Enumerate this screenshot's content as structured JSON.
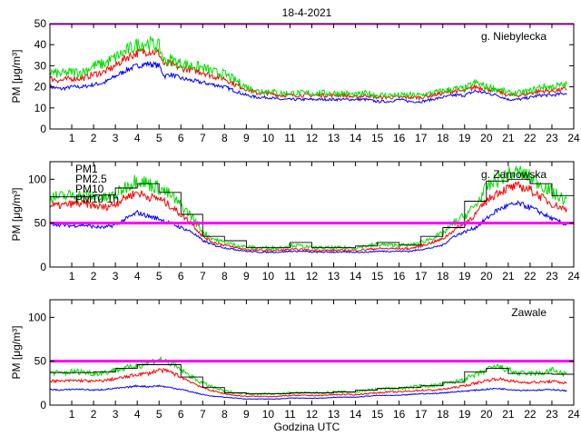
{
  "figure": {
    "title": "18-4-2021",
    "xlabel": "Godzina UTC"
  },
  "colors": {
    "pm1": "#0000ff",
    "pm25": "#ff0000",
    "pm10": "#00dd00",
    "pm10_1h": "#000000",
    "limit": "#ff00ff"
  },
  "chart_data": [
    {
      "type": "line",
      "station": "g. Niebylecka",
      "ylabel": "PM [μg/m³]",
      "xlim": [
        0,
        24
      ],
      "ylim": [
        0,
        50
      ],
      "xticks": [
        1,
        2,
        3,
        4,
        5,
        6,
        7,
        8,
        9,
        10,
        11,
        12,
        13,
        14,
        15,
        16,
        17,
        18,
        19,
        20,
        21,
        22,
        23,
        24
      ],
      "yticks": [
        0,
        10,
        20,
        30,
        40,
        50
      ],
      "limit_value": 50,
      "x": [
        0,
        0.5,
        1,
        1.5,
        2,
        2.5,
        3,
        3.5,
        4,
        4.5,
        5,
        5.25,
        5.5,
        6,
        6.5,
        7,
        7.5,
        8,
        8.5,
        9,
        9.5,
        10,
        10.5,
        11,
        11.5,
        12,
        12.5,
        13,
        13.5,
        14,
        14.5,
        15,
        15.5,
        16,
        16.5,
        17,
        17.5,
        18,
        18.5,
        19,
        19.5,
        20,
        20.5,
        21,
        21.5,
        22,
        22.5,
        23,
        23.7
      ],
      "series": [
        {
          "name": "PM1",
          "values": [
            20,
            19,
            20,
            20,
            21,
            22,
            25,
            28,
            30,
            31,
            30,
            25,
            26,
            24,
            23,
            22,
            21,
            20,
            18,
            16,
            15,
            15,
            14,
            14,
            14,
            14,
            14,
            14,
            14,
            14,
            14,
            13,
            13,
            14,
            13,
            13,
            14,
            15,
            16,
            16,
            18,
            17,
            16,
            14,
            14,
            15,
            16,
            16,
            17
          ]
        },
        {
          "name": "PM2.5",
          "values": [
            24,
            23,
            24,
            24,
            26,
            27,
            30,
            34,
            36,
            37,
            36,
            30,
            31,
            29,
            28,
            27,
            25,
            24,
            21,
            19,
            17,
            17,
            16,
            16,
            16,
            16,
            16,
            16,
            16,
            15,
            16,
            15,
            15,
            15,
            15,
            15,
            16,
            17,
            18,
            18,
            20,
            19,
            18,
            16,
            16,
            17,
            18,
            18,
            19
          ]
        },
        {
          "name": "PM10",
          "values": [
            27,
            26,
            27,
            27,
            30,
            31,
            34,
            37,
            40,
            41,
            39,
            32,
            33,
            31,
            30,
            29,
            27,
            26,
            23,
            20,
            18,
            18,
            17,
            17,
            17,
            17,
            17,
            17,
            17,
            16,
            17,
            16,
            16,
            16,
            16,
            16,
            17,
            18,
            19,
            19,
            22,
            20,
            19,
            17,
            17,
            18,
            20,
            20,
            21
          ]
        }
      ]
    },
    {
      "type": "line",
      "station": "g. Zarnowska",
      "ylabel": "PM [μg/m³]",
      "xlim": [
        0,
        24
      ],
      "ylim": [
        0,
        120
      ],
      "xticks": [
        1,
        2,
        3,
        4,
        5,
        6,
        7,
        8,
        9,
        10,
        11,
        12,
        13,
        14,
        15,
        16,
        17,
        18,
        19,
        20,
        21,
        22,
        23,
        24
      ],
      "yticks": [
        0,
        50,
        100
      ],
      "limit_value": 50,
      "legend": [
        "PM1",
        "PM2.5",
        "PM10",
        "PM10 1h"
      ],
      "legend_position": "top-left",
      "x": [
        0,
        0.5,
        1,
        1.5,
        2,
        2.5,
        3,
        3.5,
        4,
        4.5,
        5,
        5.5,
        6,
        6.5,
        7,
        7.5,
        8,
        8.5,
        9,
        9.5,
        10,
        10.5,
        11,
        11.5,
        12,
        12.5,
        13,
        13.5,
        14,
        14.5,
        15,
        15.5,
        16,
        16.5,
        17,
        17.5,
        18,
        18.5,
        19,
        19.5,
        20,
        20.5,
        21,
        21.5,
        22,
        22.5,
        23,
        23.7
      ],
      "series": [
        {
          "name": "PM1",
          "values": [
            50,
            48,
            47,
            48,
            46,
            45,
            48,
            55,
            62,
            58,
            55,
            50,
            45,
            40,
            30,
            25,
            22,
            20,
            18,
            17,
            17,
            17,
            18,
            18,
            17,
            17,
            17,
            17,
            17,
            17,
            18,
            18,
            18,
            18,
            20,
            22,
            25,
            35,
            40,
            45,
            55,
            65,
            70,
            72,
            68,
            62,
            55,
            48
          ]
        },
        {
          "name": "PM2.5",
          "values": [
            70,
            70,
            72,
            72,
            70,
            68,
            72,
            80,
            85,
            80,
            78,
            70,
            60,
            50,
            35,
            28,
            25,
            22,
            20,
            19,
            19,
            19,
            20,
            20,
            19,
            19,
            19,
            19,
            19,
            20,
            21,
            21,
            21,
            21,
            24,
            28,
            32,
            42,
            50,
            60,
            75,
            85,
            90,
            92,
            88,
            80,
            72,
            65
          ]
        },
        {
          "name": "PM10",
          "values": [
            80,
            80,
            82,
            82,
            80,
            78,
            82,
            92,
            100,
            95,
            90,
            82,
            70,
            58,
            40,
            32,
            28,
            25,
            23,
            22,
            22,
            22,
            25,
            24,
            22,
            22,
            22,
            22,
            22,
            24,
            26,
            25,
            25,
            25,
            28,
            33,
            38,
            50,
            58,
            70,
            90,
            100,
            105,
            108,
            102,
            95,
            85,
            75
          ]
        },
        {
          "name": "PM10 1h",
          "values": [
            80,
            80,
            80,
            80,
            80,
            82,
            82,
            90,
            95,
            95,
            90,
            85,
            70,
            60,
            40,
            35,
            30,
            30,
            22,
            22,
            22,
            22,
            28,
            28,
            22,
            22,
            22,
            22,
            22,
            24,
            28,
            28,
            25,
            25,
            28,
            35,
            40,
            45,
            60,
            75,
            95,
            98,
            100,
            100,
            98,
            95,
            85,
            80
          ]
        }
      ]
    },
    {
      "type": "line",
      "station": "Zawale",
      "ylabel": "PM [μg/m³]",
      "xlim": [
        0,
        24
      ],
      "ylim": [
        0,
        120
      ],
      "xticks": [
        1,
        2,
        3,
        4,
        5,
        6,
        7,
        8,
        9,
        10,
        11,
        12,
        13,
        14,
        15,
        16,
        17,
        18,
        19,
        20,
        21,
        22,
        23,
        24
      ],
      "yticks": [
        0,
        50,
        100
      ],
      "limit_value": 50,
      "x": [
        0,
        0.5,
        1,
        1.5,
        2,
        2.5,
        3,
        3.5,
        4,
        4.5,
        5,
        5.5,
        6,
        6.5,
        7,
        7.5,
        8,
        8.5,
        9,
        9.5,
        10,
        10.5,
        11,
        11.5,
        12,
        12.5,
        13,
        13.5,
        14,
        14.5,
        15,
        15.5,
        16,
        16.5,
        17,
        17.5,
        18,
        18.5,
        19,
        19.5,
        20,
        20.5,
        21,
        21.5,
        22,
        22.5,
        23,
        23.7
      ],
      "series": [
        {
          "name": "PM1",
          "values": [
            18,
            17,
            18,
            18,
            17,
            18,
            19,
            20,
            22,
            21,
            22,
            20,
            18,
            15,
            12,
            10,
            9,
            8,
            7,
            7,
            7,
            7,
            8,
            8,
            8,
            8,
            9,
            9,
            9,
            10,
            11,
            11,
            11,
            12,
            13,
            13,
            14,
            15,
            16,
            17,
            18,
            19,
            18,
            17,
            17,
            17,
            18,
            16
          ]
        },
        {
          "name": "PM2.5",
          "values": [
            28,
            27,
            28,
            28,
            27,
            28,
            30,
            32,
            35,
            36,
            40,
            38,
            32,
            26,
            20,
            16,
            13,
            11,
            10,
            10,
            10,
            10,
            11,
            11,
            11,
            11,
            12,
            12,
            12,
            13,
            14,
            15,
            15,
            16,
            17,
            17,
            18,
            20,
            22,
            25,
            28,
            30,
            28,
            26,
            26,
            26,
            27,
            25
          ]
        },
        {
          "name": "PM10",
          "values": [
            38,
            36,
            38,
            38,
            36,
            37,
            40,
            42,
            45,
            48,
            52,
            48,
            40,
            32,
            25,
            20,
            16,
            14,
            13,
            13,
            13,
            13,
            14,
            14,
            14,
            14,
            15,
            15,
            15,
            17,
            18,
            19,
            19,
            20,
            22,
            22,
            24,
            26,
            30,
            34,
            40,
            44,
            40,
            36,
            36,
            36,
            40,
            34
          ]
        },
        {
          "name": "PM10 1h",
          "values": [
            38,
            37,
            37,
            37,
            37,
            38,
            40,
            42,
            44,
            46,
            48,
            46,
            40,
            32,
            25,
            20,
            16,
            14,
            13,
            13,
            13,
            13,
            14,
            14,
            14,
            14,
            15,
            15,
            15,
            17,
            18,
            19,
            19,
            20,
            22,
            22,
            24,
            26,
            30,
            38,
            40,
            42,
            40,
            36,
            36,
            36,
            38,
            34
          ]
        }
      ]
    }
  ]
}
